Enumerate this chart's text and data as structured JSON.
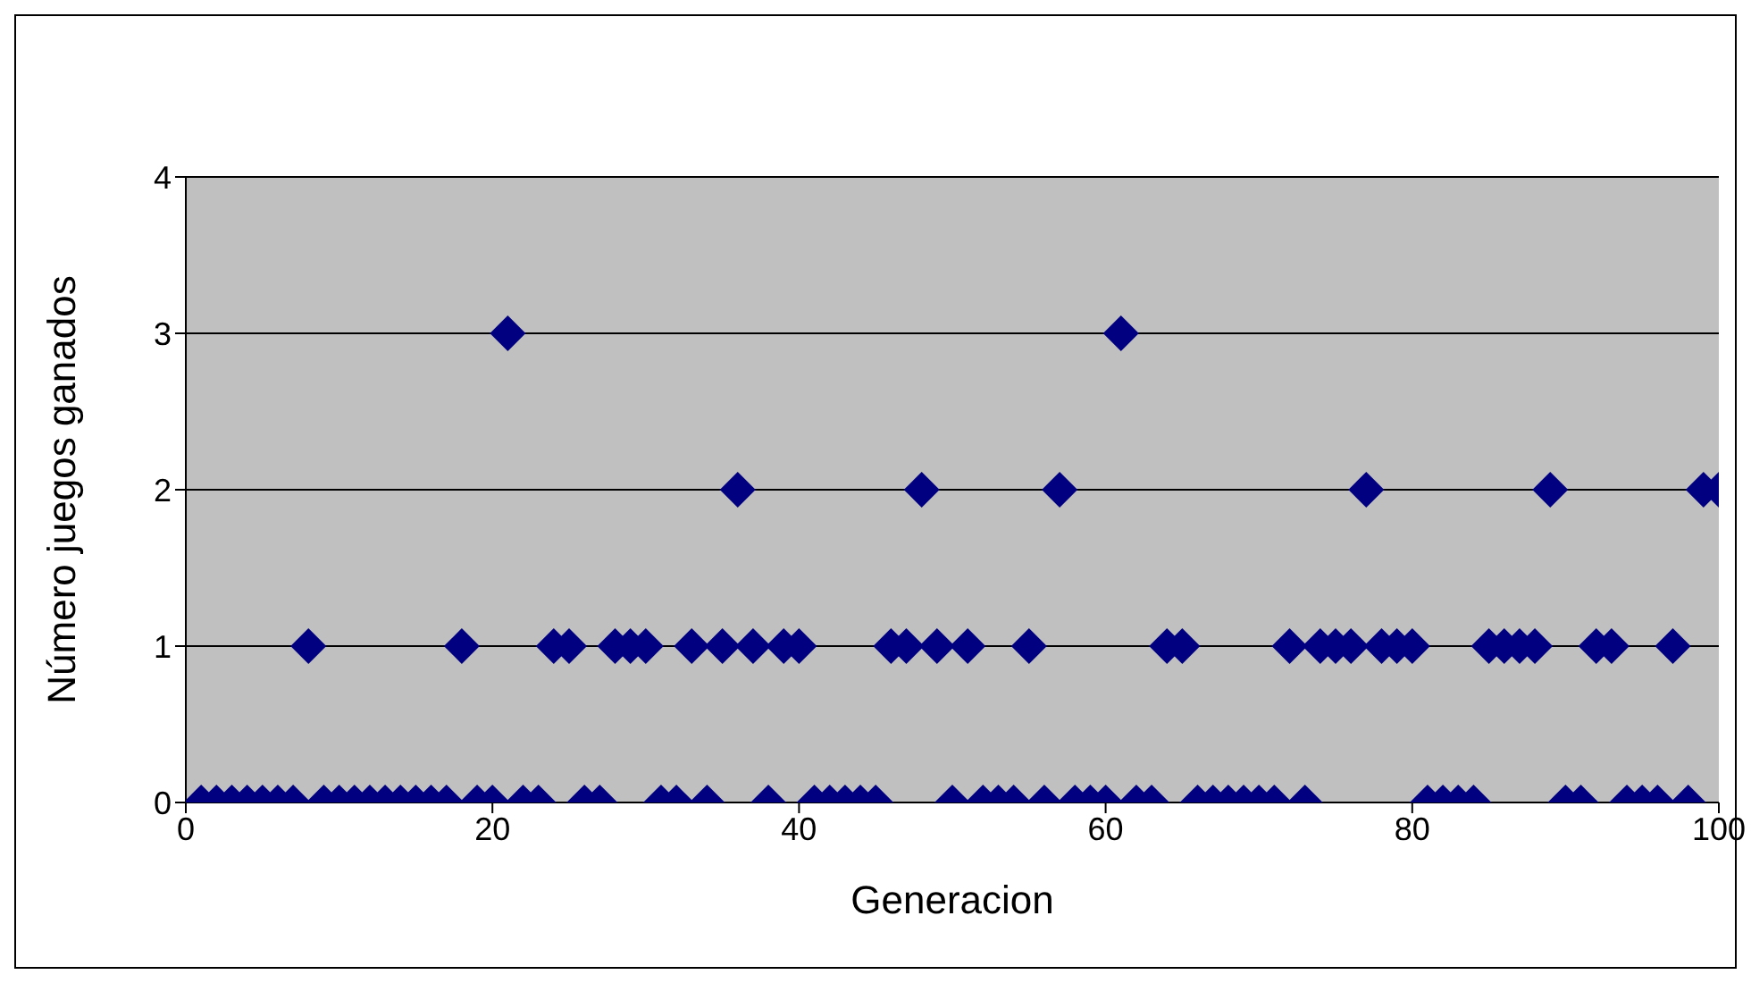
{
  "chart_data": {
    "type": "scatter",
    "xlabel": "Generacion",
    "ylabel": "Número juegos ganados",
    "x": [
      1,
      2,
      3,
      4,
      5,
      6,
      7,
      8,
      9,
      10,
      11,
      12,
      13,
      14,
      15,
      16,
      17,
      18,
      19,
      20,
      21,
      22,
      23,
      24,
      25,
      26,
      27,
      28,
      29,
      30,
      31,
      32,
      33,
      34,
      35,
      36,
      37,
      38,
      39,
      40,
      41,
      42,
      43,
      44,
      45,
      46,
      47,
      48,
      49,
      50,
      51,
      52,
      53,
      54,
      55,
      56,
      57,
      58,
      59,
      60,
      61,
      62,
      63,
      64,
      65,
      66,
      67,
      68,
      69,
      70,
      71,
      72,
      73,
      74,
      75,
      76,
      77,
      78,
      79,
      80,
      81,
      82,
      83,
      84,
      85,
      86,
      87,
      88,
      89,
      90,
      91,
      92,
      93,
      94,
      95,
      96,
      97,
      98,
      99,
      100
    ],
    "series": [
      {
        "color": "#000080",
        "values": [
          0,
          0,
          0,
          0,
          0,
          0,
          0,
          1,
          0,
          0,
          0,
          0,
          0,
          0,
          0,
          0,
          0,
          1,
          0,
          0,
          3,
          0,
          0,
          1,
          1,
          0,
          0,
          1,
          1,
          1,
          0,
          0,
          1,
          0,
          1,
          2,
          1,
          0,
          1,
          1,
          0,
          0,
          0,
          0,
          0,
          1,
          1,
          2,
          1,
          0,
          1,
          0,
          0,
          0,
          1,
          0,
          2,
          0,
          0,
          0,
          3,
          0,
          0,
          1,
          1,
          0,
          0,
          0,
          0,
          0,
          0,
          1,
          0,
          1,
          1,
          1,
          2,
          1,
          1,
          1,
          0,
          0,
          0,
          0,
          1,
          1,
          1,
          1,
          2,
          0,
          0,
          1,
          1,
          0,
          0,
          0,
          1,
          0,
          2,
          2
        ]
      }
    ],
    "xlim": [
      0,
      100
    ],
    "xticks": [
      0,
      20,
      40,
      60,
      80,
      100
    ],
    "ylim": [
      0,
      4
    ],
    "yticks": [
      0,
      1,
      2,
      3,
      4
    ],
    "grid": "y",
    "marker": "diamond"
  }
}
